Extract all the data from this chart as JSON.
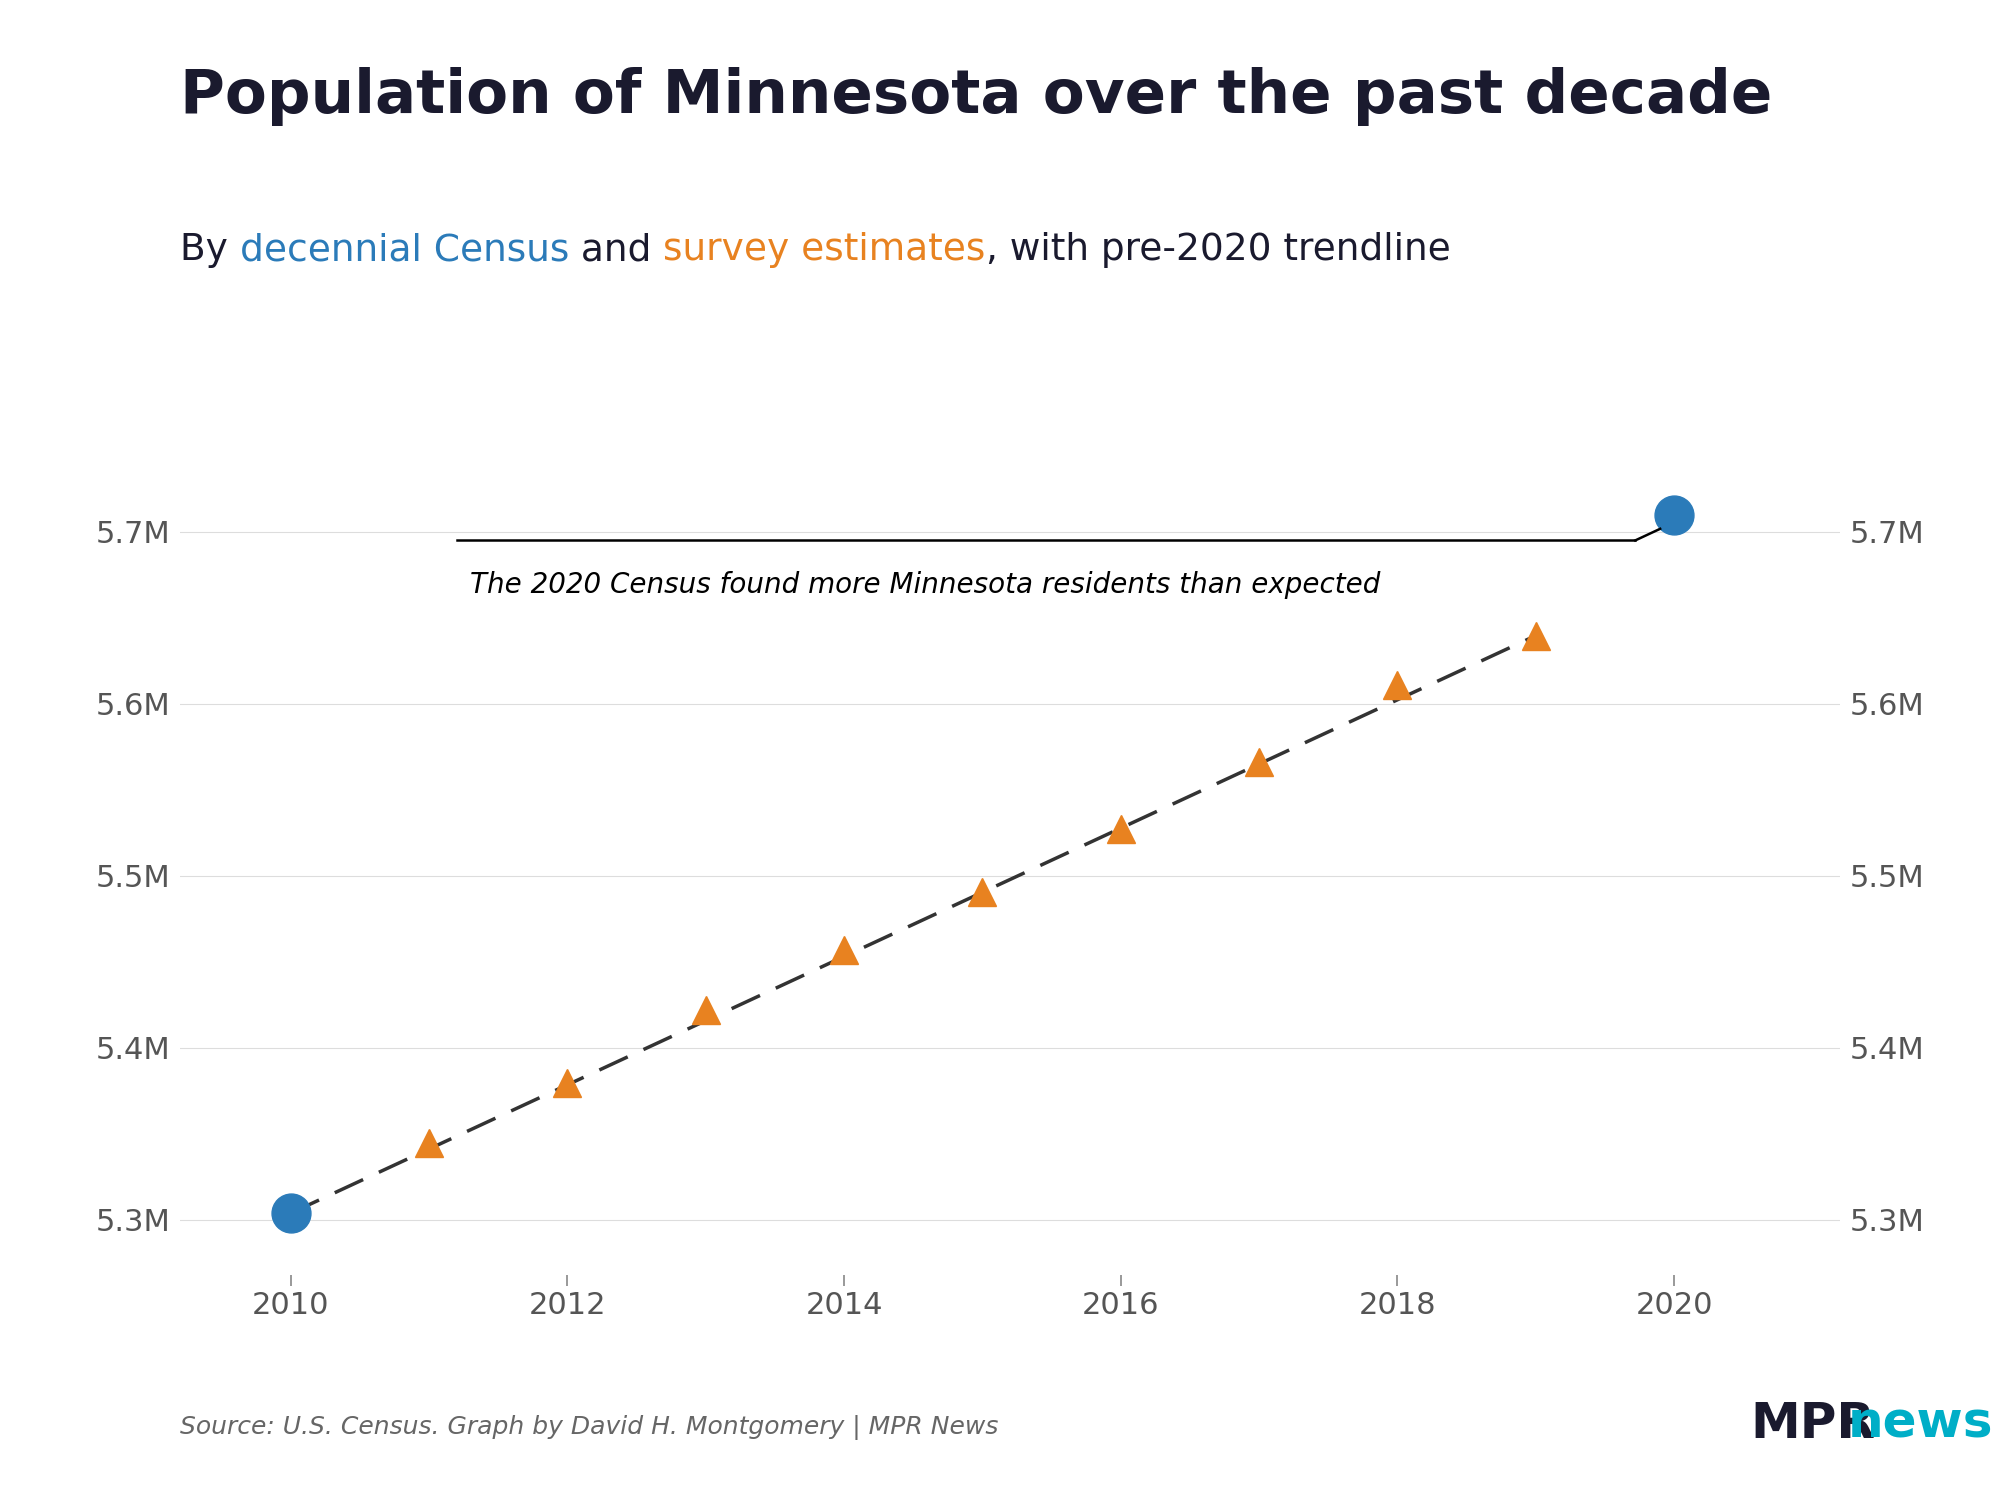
{
  "title": "Population of Minnesota over the past decade",
  "subtitle_parts": [
    {
      "text": "By ",
      "color": "#1a1a2e"
    },
    {
      "text": "decennial Census",
      "color": "#2b7bb9"
    },
    {
      "text": " and ",
      "color": "#1a1a2e"
    },
    {
      "text": "survey estimates",
      "color": "#e88220"
    },
    {
      "text": ", with pre-2020 trendline",
      "color": "#1a1a2e"
    }
  ],
  "census_years": [
    2010,
    2020
  ],
  "census_values": [
    5303925,
    5709752
  ],
  "survey_years": [
    2011,
    2012,
    2013,
    2014,
    2015,
    2016,
    2017,
    2018,
    2019
  ],
  "survey_values": [
    5344861,
    5379646,
    5421981,
    5457173,
    5490726,
    5527358,
    5566230,
    5611179,
    5639632
  ],
  "trendline_x": [
    2010,
    2019
  ],
  "trendline_y": [
    5303925,
    5639632
  ],
  "annotation_text": "The 2020 Census found more Minnesota residents than expected",
  "xlim": [
    2009.2,
    2021.2
  ],
  "ylim": [
    5268000,
    5765000
  ],
  "yticks": [
    5300000,
    5400000,
    5500000,
    5600000,
    5700000
  ],
  "ytick_labels": [
    "5.3M",
    "5.4M",
    "5.5M",
    "5.6M",
    "5.7M"
  ],
  "xticks": [
    2010,
    2012,
    2014,
    2016,
    2018,
    2020
  ],
  "census_color": "#2b7bb9",
  "survey_color": "#e88220",
  "trendline_color": "#333333",
  "background_color": "#ffffff",
  "title_color": "#1a1a2e",
  "title_fontsize": 44,
  "subtitle_fontsize": 27,
  "tick_fontsize": 22,
  "annotation_fontsize": 20,
  "source_text": "Source: U.S. Census. Graph by David H. Montgomery | MPR News",
  "source_fontsize": 18
}
